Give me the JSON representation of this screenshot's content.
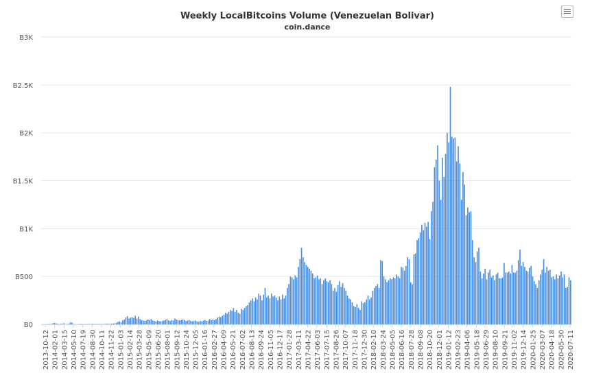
{
  "chart_data": {
    "type": "bar",
    "title": "Weekly LocalBitcoins Volume (Venezuelan Bolivar)",
    "subtitle": "coin.dance",
    "xlabel": "",
    "ylabel": "",
    "ylim": [
      0,
      3000
    ],
    "yticks": [
      {
        "value": 0,
        "label": "B0"
      },
      {
        "value": 500,
        "label": "B500"
      },
      {
        "value": 1000,
        "label": "B1K"
      },
      {
        "value": 1500,
        "label": "B1.5K"
      },
      {
        "value": 2000,
        "label": "B2K"
      },
      {
        "value": 2500,
        "label": "B2.5K"
      },
      {
        "value": 3000,
        "label": "B3K"
      }
    ],
    "xtick_labels": [
      "2013-10-12",
      "2014-02-01",
      "2014-03-15",
      "2014-05-10",
      "2014-07-19",
      "2014-08-30",
      "2014-10-11",
      "2014-11-22",
      "2015-01-03",
      "2015-02-14",
      "2015-03-28",
      "2015-05-09",
      "2015-06-20",
      "2015-08-01",
      "2015-09-12",
      "2015-10-24",
      "2015-12-05",
      "2016-01-16",
      "2016-02-27",
      "2016-04-09",
      "2016-05-21",
      "2016-07-02",
      "2016-08-13",
      "2016-09-24",
      "2016-11-05",
      "2016-12-17",
      "2017-01-28",
      "2017-03-11",
      "2017-04-22",
      "2017-06-03",
      "2017-07-15",
      "2017-08-26",
      "2017-10-07",
      "2017-11-18",
      "2017-12-30",
      "2018-02-10",
      "2018-03-24",
      "2018-05-05",
      "2018-06-16",
      "2018-07-28",
      "2018-09-08",
      "2018-10-20",
      "2018-12-01",
      "2019-01-12",
      "2019-02-23",
      "2019-04-06",
      "2019-05-18",
      "2019-06-29",
      "2019-08-10",
      "2019-09-21",
      "2019-11-02",
      "2019-12-14",
      "2020-01-25",
      "2020-03-07",
      "2020-04-18",
      "2020-05-30",
      "2020-07-11"
    ],
    "grid": true,
    "legend": "none",
    "bar_color": "#4a90e2",
    "values": [
      2,
      1,
      1,
      1,
      2,
      3,
      3,
      12,
      15,
      8,
      5,
      2,
      5,
      5,
      12,
      1,
      3,
      5,
      20,
      18,
      3,
      2,
      1,
      2,
      2,
      3,
      2,
      1,
      2,
      2,
      3,
      2,
      4,
      2,
      3,
      2,
      3,
      3,
      2,
      2,
      4,
      6,
      5,
      4,
      7,
      8,
      10,
      15,
      25,
      30,
      20,
      40,
      50,
      70,
      85,
      60,
      70,
      75,
      65,
      90,
      60,
      80,
      55,
      45,
      40,
      35,
      40,
      50,
      45,
      55,
      40,
      35,
      30,
      40,
      35,
      30,
      35,
      40,
      45,
      55,
      40,
      35,
      45,
      40,
      60,
      50,
      45,
      40,
      45,
      50,
      45,
      35,
      40,
      45,
      35,
      30,
      35,
      40,
      30,
      25,
      35,
      30,
      40,
      45,
      35,
      40,
      55,
      45,
      50,
      45,
      55,
      70,
      80,
      75,
      90,
      100,
      120,
      110,
      130,
      150,
      140,
      170,
      130,
      150,
      120,
      110,
      160,
      150,
      170,
      190,
      200,
      230,
      250,
      270,
      240,
      280,
      260,
      320,
      300,
      250,
      310,
      380,
      280,
      300,
      270,
      320,
      290,
      300,
      280,
      250,
      290,
      260,
      310,
      270,
      300,
      380,
      420,
      500,
      490,
      470,
      510,
      490,
      600,
      680,
      800,
      700,
      650,
      620,
      600,
      580,
      560,
      530,
      480,
      490,
      510,
      470,
      480,
      420,
      460,
      480,
      450,
      440,
      460,
      420,
      350,
      380,
      340,
      410,
      450,
      390,
      430,
      380,
      350,
      300,
      270,
      260,
      230,
      190,
      180,
      210,
      170,
      150,
      240,
      220,
      230,
      260,
      300,
      260,
      280,
      350,
      380,
      400,
      420,
      380,
      670,
      660,
      500,
      470,
      440,
      460,
      480,
      470,
      490,
      480,
      520,
      500,
      480,
      600,
      590,
      560,
      610,
      700,
      680,
      440,
      420,
      730,
      740,
      880,
      900,
      960,
      1040,
      980,
      1060,
      1020,
      1070,
      890,
      1180,
      1280,
      1640,
      1720,
      1870,
      1500,
      1300,
      1740,
      1540,
      1780,
      2000,
      1900,
      2480,
      1960,
      1940,
      1950,
      1700,
      1860,
      1680,
      1300,
      1590,
      1460,
      1140,
      1220,
      1170,
      1180,
      880,
      700,
      650,
      760,
      800,
      550,
      480,
      530,
      580,
      470,
      540,
      570,
      490,
      510,
      460,
      520,
      540,
      480,
      480,
      490,
      640,
      540,
      540,
      550,
      530,
      620,
      540,
      540,
      560,
      670,
      780,
      610,
      650,
      600,
      560,
      550,
      590,
      610,
      500,
      450,
      420,
      380,
      460,
      520,
      570,
      680,
      540,
      600,
      560,
      570,
      490,
      500,
      470,
      520,
      480,
      510,
      550,
      490,
      520,
      380,
      390,
      490,
      460
    ],
    "x_first": "2013-10-12",
    "x_last": "2020-07-11"
  },
  "menu": {
    "icon": "hamburger-menu-icon"
  }
}
